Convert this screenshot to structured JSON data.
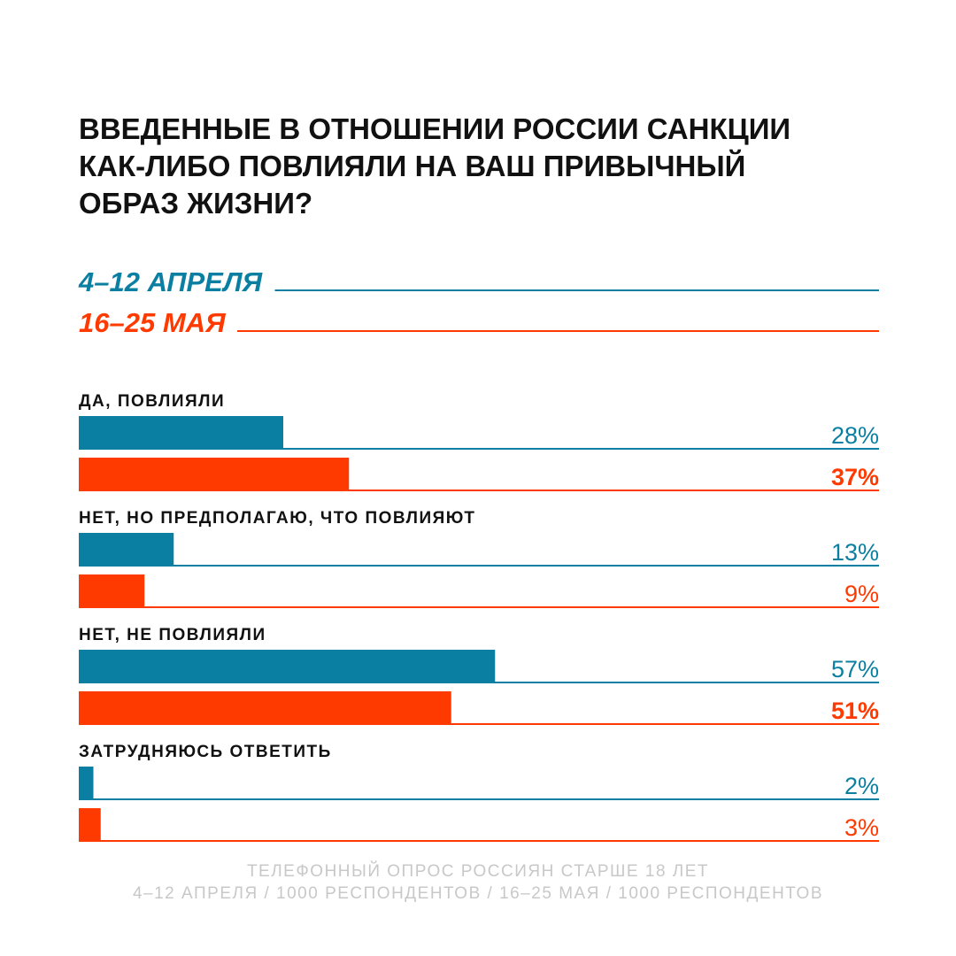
{
  "chart_data": {
    "type": "bar",
    "orientation": "horizontal",
    "title": [
      "ВВЕДЕННЫЕ В ОТНОШЕНИИ РОССИИ САНКЦИИ",
      "КАК-ЛИБО ПОВЛИЯЛИ НА ВАШ ПРИВЫЧНЫЙ",
      "ОБРАЗ ЖИЗНИ?"
    ],
    "categories": [
      "ДА, ПОВЛИЯЛИ",
      "НЕТ, НО ПРЕДПОЛАГАЮ, ЧТО ПОВЛИЯЮТ",
      "НЕТ, НЕ ПОВЛИЯЛИ",
      "ЗАТРУДНЯЮСЬ ОТВЕТИТЬ"
    ],
    "series": [
      {
        "name": "4–12 АПРЕЛЯ",
        "color": "#0b7fa2",
        "values": [
          28,
          13,
          57,
          2
        ],
        "value_labels": [
          "28%",
          "13%",
          "57%",
          "2%"
        ],
        "value_label_bold": [
          false,
          false,
          false,
          false
        ]
      },
      {
        "name": "16–25 МАЯ",
        "color": "#ff3a00",
        "values": [
          37,
          9,
          51,
          3
        ],
        "value_labels": [
          "37%",
          "9%",
          "51%",
          "3%"
        ],
        "value_label_bold": [
          true,
          false,
          true,
          false
        ]
      }
    ],
    "xlim": [
      0,
      100
    ],
    "notes": [
      "ТЕЛЕФОННЫЙ ОПРОС РОССИЯН СТАРШЕ 18 ЛЕТ",
      "4–12 АПРЕЛЯ / 1000  РЕСПОНДЕНТОВ / 16–25 МАЯ / 1000  РЕСПОНДЕНТОВ"
    ]
  }
}
